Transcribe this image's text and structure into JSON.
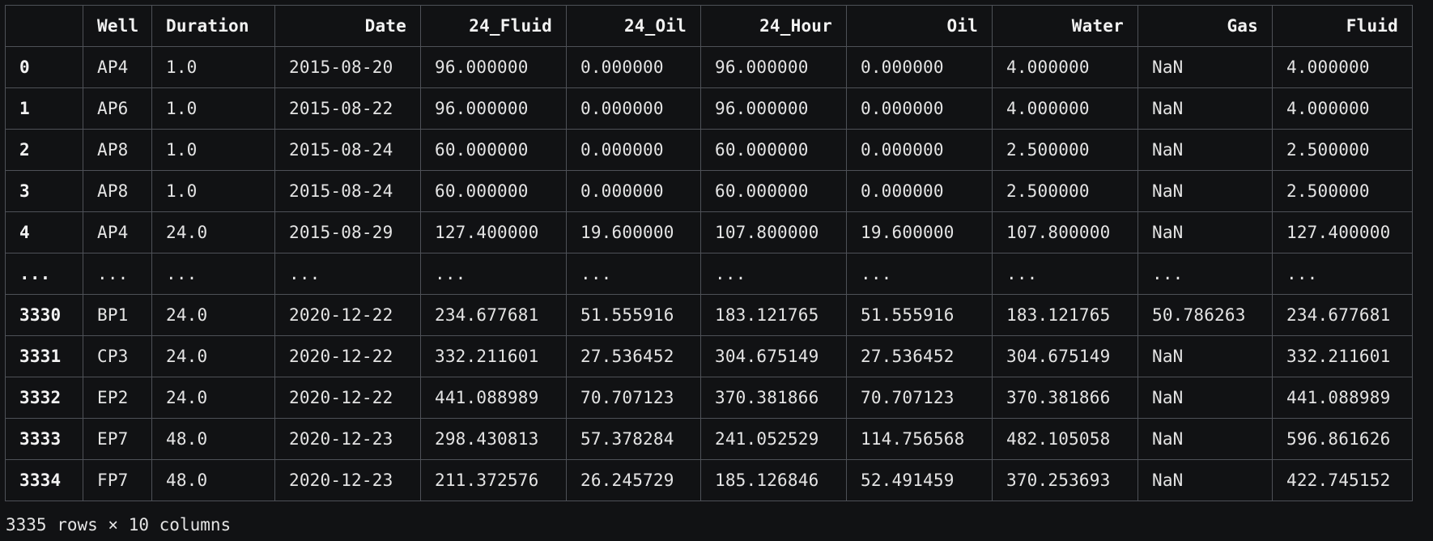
{
  "table": {
    "columns": [
      "",
      "Well",
      "Duration",
      "Date",
      "24_Fluid",
      "24_Oil",
      "24_Hour",
      "Oil",
      "Water",
      "Gas",
      "Fluid"
    ],
    "rows": [
      [
        "0",
        "AP4",
        "1.0",
        "2015-08-20",
        "96.000000",
        "0.000000",
        "96.000000",
        "0.000000",
        "4.000000",
        "NaN",
        "4.000000"
      ],
      [
        "1",
        "AP6",
        "1.0",
        "2015-08-22",
        "96.000000",
        "0.000000",
        "96.000000",
        "0.000000",
        "4.000000",
        "NaN",
        "4.000000"
      ],
      [
        "2",
        "AP8",
        "1.0",
        "2015-08-24",
        "60.000000",
        "0.000000",
        "60.000000",
        "0.000000",
        "2.500000",
        "NaN",
        "2.500000"
      ],
      [
        "3",
        "AP8",
        "1.0",
        "2015-08-24",
        "60.000000",
        "0.000000",
        "60.000000",
        "0.000000",
        "2.500000",
        "NaN",
        "2.500000"
      ],
      [
        "4",
        "AP4",
        "24.0",
        "2015-08-29",
        "127.400000",
        "19.600000",
        "107.800000",
        "19.600000",
        "107.800000",
        "NaN",
        "127.400000"
      ],
      [
        "...",
        "...",
        "...",
        "...",
        "...",
        "...",
        "...",
        "...",
        "...",
        "...",
        "..."
      ],
      [
        "3330",
        "BP1",
        "24.0",
        "2020-12-22",
        "234.677681",
        "51.555916",
        "183.121765",
        "51.555916",
        "183.121765",
        "50.786263",
        "234.677681"
      ],
      [
        "3331",
        "CP3",
        "24.0",
        "2020-12-22",
        "332.211601",
        "27.536452",
        "304.675149",
        "27.536452",
        "304.675149",
        "NaN",
        "332.211601"
      ],
      [
        "3332",
        "EP2",
        "24.0",
        "2020-12-22",
        "441.088989",
        "70.707123",
        "370.381866",
        "70.707123",
        "370.381866",
        "NaN",
        "441.088989"
      ],
      [
        "3333",
        "EP7",
        "48.0",
        "2020-12-23",
        "298.430813",
        "57.378284",
        "241.052529",
        "114.756568",
        "482.105058",
        "NaN",
        "596.861626"
      ],
      [
        "3334",
        "FP7",
        "48.0",
        "2020-12-23",
        "211.372576",
        "26.245729",
        "185.126846",
        "52.491459",
        "370.253693",
        "NaN",
        "422.745152"
      ]
    ]
  },
  "shape_text": "3335 rows × 10 columns",
  "colors": {
    "background": "#111214",
    "grid": "#4e5157",
    "text": "#e4e4e4"
  }
}
